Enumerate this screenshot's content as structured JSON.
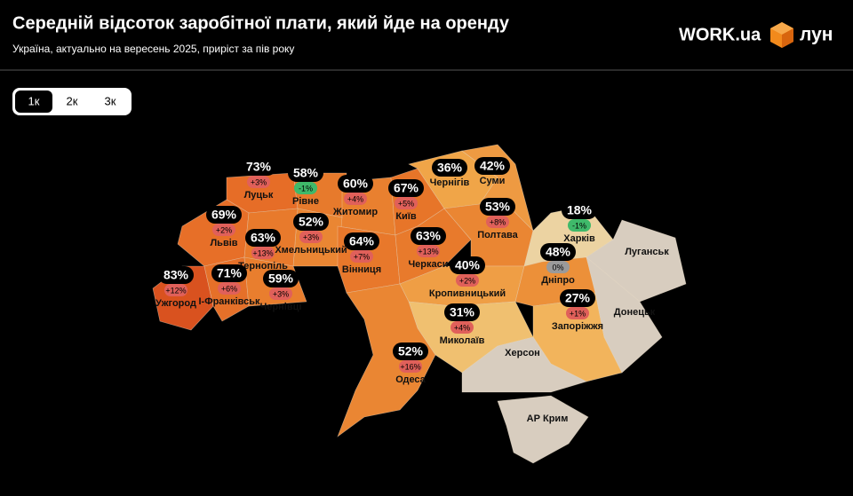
{
  "header": {
    "title": "Середній відсоток заробітної плати, який йде на оренду",
    "subtitle": "Україна, актуально на вересень 2025, приріст за пів року",
    "logo_work": "WORK.ua",
    "logo_lun": "лун"
  },
  "tabs": [
    "1к",
    "2к",
    "3к"
  ],
  "regions": [
    {
      "name": "Луцьк",
      "share": "73%",
      "change": "+3%",
      "color": "#e66d27",
      "change_color": "#e0605a"
    },
    {
      "name": "Рівне",
      "share": "58%",
      "change": "-1%",
      "color": "#e77a2c",
      "change_color": "#3fb96a"
    },
    {
      "name": "Житомир",
      "share": "60%",
      "change": "+4%",
      "color": "#e9802f",
      "change_color": "#e0605a"
    },
    {
      "name": "Київ",
      "share": "67%",
      "change": "+5%",
      "color": "#e77529",
      "change_color": "#e0605a"
    },
    {
      "name": "Чернігів",
      "share": "36%",
      "color": "#f0a548"
    },
    {
      "name": "Суми",
      "share": "42%",
      "color": "#ee9a42"
    },
    {
      "name": "Львів",
      "share": "69%",
      "change": "+2%",
      "color": "#e76f28",
      "change_color": "#e0605a"
    },
    {
      "name": "Хмельницький",
      "share": "52%",
      "change": "+3%",
      "color": "#ea8633",
      "change_color": "#e0605a"
    },
    {
      "name": "Тернопіль",
      "share": "63%",
      "change": "+13%",
      "color": "#e87a2c",
      "change_color": "#e0605a"
    },
    {
      "name": "Вінниця",
      "share": "64%",
      "change": "+7%",
      "color": "#e8782b",
      "change_color": "#e0605a"
    },
    {
      "name": "Черкаси",
      "share": "63%",
      "change": "+13%",
      "color": "#e87a2c",
      "change_color": "#e0605a"
    },
    {
      "name": "Полтава",
      "share": "53%",
      "change": "+8%",
      "color": "#ea8633",
      "change_color": "#e0605a"
    },
    {
      "name": "Харків",
      "share": "18%",
      "change": "-1%",
      "color": "#ecd3a2",
      "change_color": "#3fb96a"
    },
    {
      "name": "Ужгород",
      "share": "83%",
      "change": "+12%",
      "color": "#d9521f",
      "change_color": "#e0605a"
    },
    {
      "name": "І-Франківськ",
      "share": "71%",
      "change": "+6%",
      "color": "#e57029",
      "change_color": "#e0605a"
    },
    {
      "name": "Чернівці",
      "share": "59%",
      "change": "+3%",
      "color": "#e97e2e",
      "change_color": "#e0605a"
    },
    {
      "name": "Кропивницький",
      "share": "40%",
      "change": "+2%",
      "color": "#ef9e45",
      "change_color": "#e0605a"
    },
    {
      "name": "Дніпро",
      "share": "48%",
      "change": "0%",
      "color": "#ec9039",
      "change_color": "#9a9a9a"
    },
    {
      "name": "Миколаїв",
      "share": "31%",
      "change": "+4%",
      "color": "#f2b45c",
      "change_color": "#e0605a"
    },
    {
      "name": "Запоріжжя",
      "share": "27%",
      "change": "+1%",
      "color": "#f0c070",
      "change_color": "#e0605a"
    },
    {
      "name": "Одеса",
      "share": "52%",
      "change": "+16%",
      "color": "#ea8633",
      "change_color": "#e0605a"
    },
    {
      "name": "Луганськ",
      "color": "#d8cdbf"
    },
    {
      "name": "Донецьк",
      "color": "#d8cdbf"
    },
    {
      "name": "Херсон",
      "color": "#d8cdbf"
    },
    {
      "name": "АР Крим",
      "color": "#d8cdbf"
    }
  ]
}
